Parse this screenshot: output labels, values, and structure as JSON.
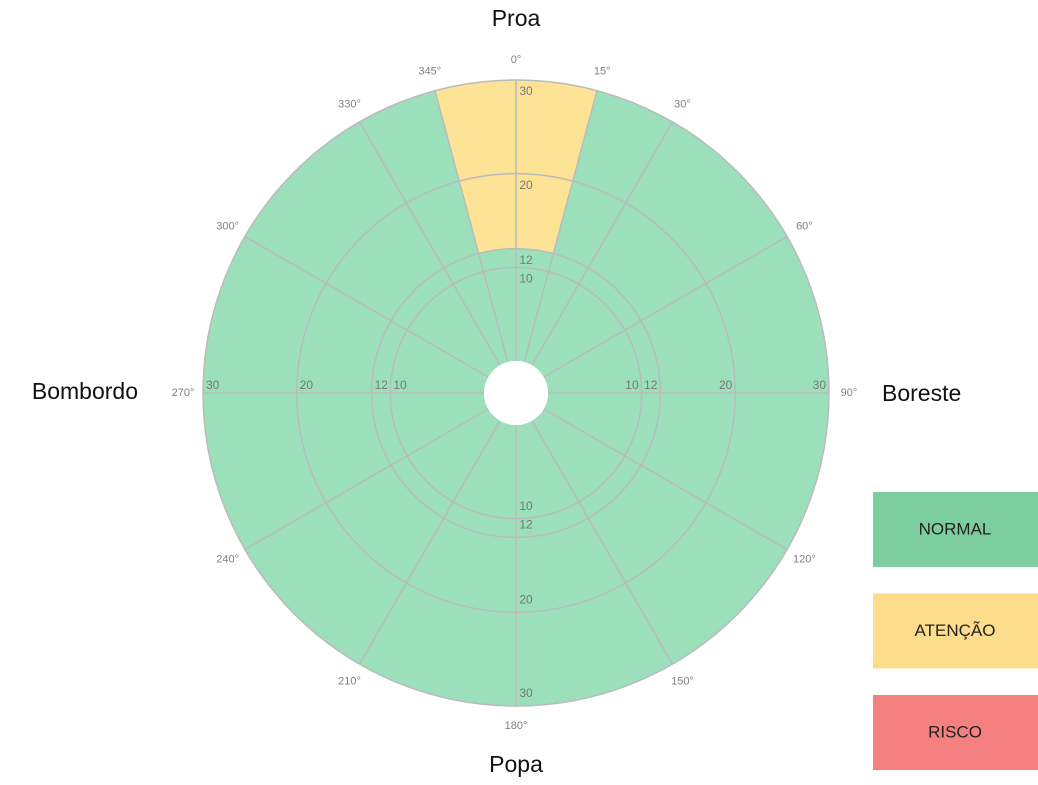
{
  "chart_data": {
    "type": "polar-sectors",
    "directions": {
      "top": "Proa",
      "right": "Boreste",
      "bottom": "Popa",
      "left": "Bombordo"
    },
    "angle_ticks": [
      {
        "value": 0,
        "label": "0°"
      },
      {
        "value": 15,
        "label": "15°"
      },
      {
        "value": 30,
        "label": "30°"
      },
      {
        "value": 60,
        "label": "60°"
      },
      {
        "value": 90,
        "label": "90°"
      },
      {
        "value": 120,
        "label": "120°"
      },
      {
        "value": 150,
        "label": "150°"
      },
      {
        "value": 180,
        "label": "180°"
      },
      {
        "value": 210,
        "label": "210°"
      },
      {
        "value": 240,
        "label": "240°"
      },
      {
        "value": 270,
        "label": "270°"
      },
      {
        "value": 300,
        "label": "300°"
      },
      {
        "value": 330,
        "label": "330°"
      },
      {
        "value": 345,
        "label": "345°"
      }
    ],
    "rlim": [
      0,
      30
    ],
    "rticks": [
      10,
      12,
      20,
      30
    ],
    "sectors": [
      {
        "start": 15,
        "end": 345,
        "r0": 0,
        "r1": 30,
        "color": "#9bdfbb"
      },
      {
        "start": 345,
        "end": 15,
        "r0": 0,
        "r1": 12,
        "color": "#9bdfbb"
      },
      {
        "start": 345,
        "end": 15,
        "r0": 12,
        "r1": 30,
        "color": "#fde395"
      }
    ],
    "legend": [
      {
        "label": "NORMAL",
        "color": "#7dce9e"
      },
      {
        "label": "ATENÇÃO",
        "color": "#fddd8c"
      },
      {
        "label": "RISCO",
        "color": "#f58080"
      }
    ]
  }
}
